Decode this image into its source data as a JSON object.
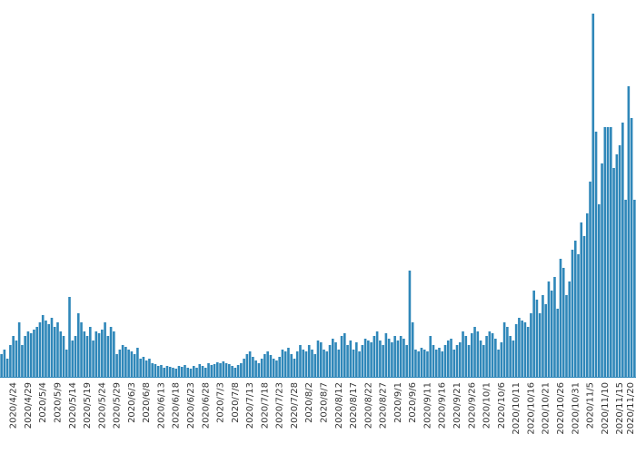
{
  "chart_data": {
    "type": "bar",
    "color": "#2f87b9",
    "ylim": [
      0,
      400
    ],
    "categories": [
      null,
      null,
      null,
      null,
      "2020/4/24",
      null,
      null,
      null,
      null,
      "2020/4/29",
      null,
      null,
      null,
      null,
      "2020/5/4",
      null,
      null,
      null,
      null,
      "2020/5/9",
      null,
      null,
      null,
      null,
      "2020/5/14",
      null,
      null,
      null,
      null,
      "2020/5/19",
      null,
      null,
      null,
      null,
      "2020/5/24",
      null,
      null,
      null,
      null,
      "2020/5/29",
      null,
      null,
      null,
      null,
      "2020/6/3",
      null,
      null,
      null,
      null,
      "2020/6/8",
      null,
      null,
      null,
      null,
      "2020/6/13",
      null,
      null,
      null,
      null,
      "2020/6/18",
      null,
      null,
      null,
      null,
      "2020/6/23",
      null,
      null,
      null,
      null,
      "2020/6/28",
      null,
      null,
      null,
      null,
      "2020/7/3",
      null,
      null,
      null,
      null,
      "2020/7/8",
      null,
      null,
      null,
      null,
      "2020/7/13",
      null,
      null,
      null,
      null,
      "2020/7/18",
      null,
      null,
      null,
      null,
      "2020/7/23",
      null,
      null,
      null,
      null,
      "2020/7/28",
      null,
      null,
      null,
      null,
      "2020/8/2",
      null,
      null,
      null,
      null,
      "2020/8/7",
      null,
      null,
      null,
      null,
      "2020/8/12",
      null,
      null,
      null,
      null,
      "2020/8/17",
      null,
      null,
      null,
      null,
      "2020/8/22",
      null,
      null,
      null,
      null,
      "2020/8/27",
      null,
      null,
      null,
      null,
      "2020/9/1",
      null,
      null,
      null,
      null,
      "2020/9/6",
      null,
      null,
      null,
      null,
      "2020/9/11",
      null,
      null,
      null,
      null,
      "2020/9/16",
      null,
      null,
      null,
      null,
      "2020/9/21",
      null,
      null,
      null,
      null,
      "2020/9/26",
      null,
      null,
      null,
      null,
      "2020/10/1",
      null,
      null,
      null,
      null,
      "2020/10/6",
      null,
      null,
      null,
      null,
      "2020/10/11",
      null,
      null,
      null,
      null,
      "2020/10/16",
      null,
      null,
      null,
      null,
      "2020/10/21",
      null,
      null,
      null,
      null,
      "2020/10/26",
      null,
      null,
      null,
      null,
      "2020/10/31",
      null,
      null,
      null,
      null,
      "2020/11/5",
      null,
      null,
      null,
      null,
      "2020/11/10",
      null,
      null,
      null,
      null,
      "2020/11/15",
      null,
      null,
      null,
      null,
      "2020/11/20"
    ],
    "values": [
      25,
      30,
      20,
      35,
      45,
      40,
      60,
      35,
      45,
      50,
      48,
      52,
      55,
      60,
      68,
      62,
      58,
      65,
      55,
      60,
      50,
      45,
      30,
      88,
      40,
      45,
      70,
      60,
      50,
      45,
      55,
      40,
      50,
      48,
      52,
      60,
      45,
      55,
      50,
      25,
      30,
      35,
      33,
      30,
      28,
      25,
      32,
      20,
      22,
      18,
      20,
      15,
      14,
      12,
      13,
      10,
      12,
      11,
      10,
      9,
      12,
      11,
      13,
      10,
      9,
      12,
      10,
      14,
      12,
      10,
      15,
      13,
      14,
      16,
      15,
      17,
      15,
      14,
      12,
      10,
      13,
      15,
      20,
      25,
      28,
      22,
      18,
      15,
      20,
      25,
      28,
      24,
      20,
      18,
      22,
      30,
      28,
      32,
      25,
      20,
      28,
      35,
      30,
      28,
      35,
      30,
      25,
      40,
      38,
      30,
      28,
      35,
      42,
      38,
      30,
      45,
      48,
      35,
      40,
      30,
      38,
      28,
      35,
      42,
      40,
      38,
      45,
      50,
      40,
      35,
      48,
      42,
      38,
      45,
      40,
      45,
      42,
      35,
      117,
      60,
      30,
      28,
      32,
      30,
      28,
      45,
      35,
      30,
      32,
      28,
      35,
      40,
      42,
      30,
      35,
      38,
      50,
      45,
      35,
      48,
      55,
      50,
      40,
      35,
      45,
      50,
      48,
      42,
      30,
      38,
      60,
      55,
      45,
      40,
      58,
      65,
      62,
      60,
      55,
      70,
      95,
      85,
      70,
      90,
      80,
      105,
      95,
      110,
      75,
      130,
      120,
      90,
      105,
      140,
      150,
      135,
      170,
      155,
      180,
      215,
      400,
      270,
      190,
      235,
      275,
      275,
      275,
      230,
      245,
      255,
      280,
      195,
      320,
      285,
      195
    ]
  }
}
